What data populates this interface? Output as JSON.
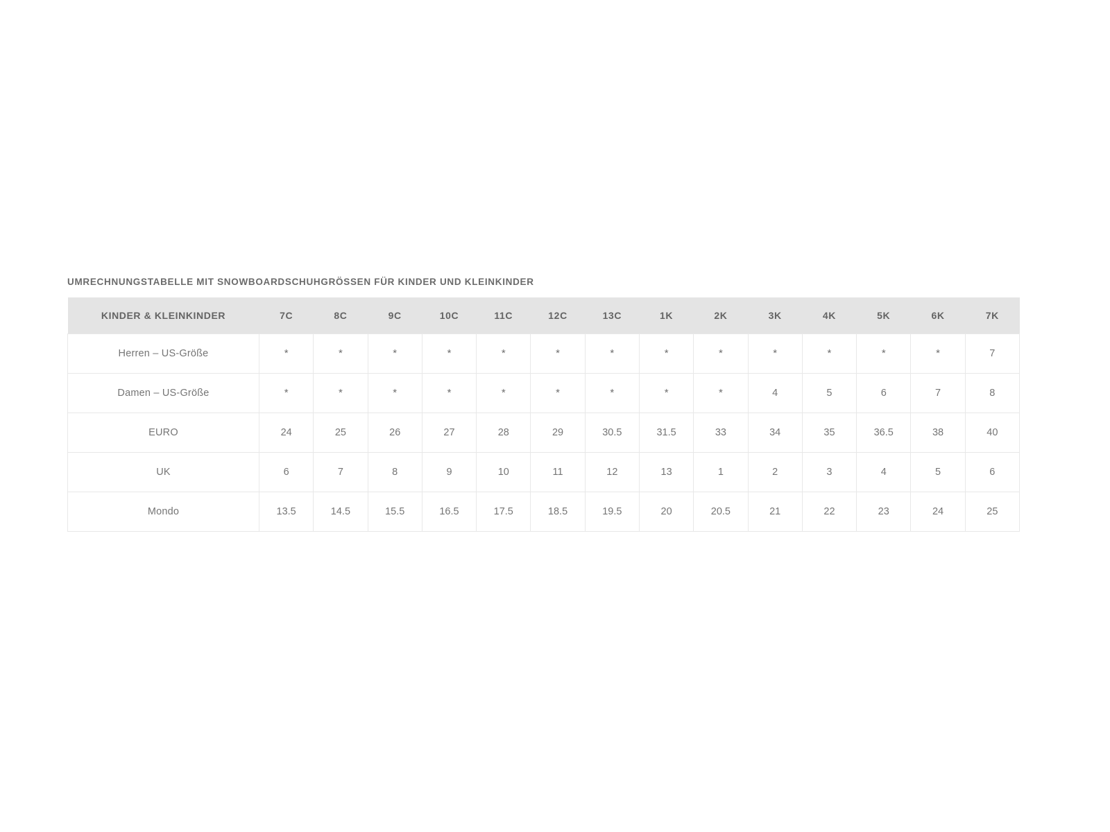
{
  "page": {
    "background": "#ffffff"
  },
  "section_title": "UMRECHNUNGSTABELLE MIT SNOWBOARDSCHUHGRÖSSEN FÜR KINDER UND KLEINKINDER",
  "table": {
    "header": [
      "KINDER & KLEINKINDER",
      "7C",
      "8C",
      "9C",
      "10C",
      "11C",
      "12C",
      "13C",
      "1K",
      "2K",
      "3K",
      "4K",
      "5K",
      "6K",
      "7K"
    ],
    "rows": [
      {
        "label": "Herren – US-Größe",
        "values": [
          "*",
          "*",
          "*",
          "*",
          "*",
          "*",
          "*",
          "*",
          "*",
          "*",
          "*",
          "*",
          "*",
          "7"
        ]
      },
      {
        "label": "Damen – US-Größe",
        "values": [
          "*",
          "*",
          "*",
          "*",
          "*",
          "*",
          "*",
          "*",
          "*",
          "4",
          "5",
          "6",
          "7",
          "8"
        ]
      },
      {
        "label": "EURO",
        "values": [
          "24",
          "25",
          "26",
          "27",
          "28",
          "29",
          "30.5",
          "31.5",
          "33",
          "34",
          "35",
          "36.5",
          "38",
          "40"
        ]
      },
      {
        "label": "UK",
        "values": [
          "6",
          "7",
          "8",
          "9",
          "10",
          "11",
          "12",
          "13",
          "1",
          "2",
          "3",
          "4",
          "5",
          "6"
        ]
      },
      {
        "label": "Mondo",
        "values": [
          "13.5",
          "14.5",
          "15.5",
          "16.5",
          "17.5",
          "18.5",
          "19.5",
          "20",
          "20.5",
          "21",
          "22",
          "23",
          "24",
          "25"
        ]
      }
    ],
    "colors": {
      "header_background": "#e4e4e4",
      "border": "#e8e8e8",
      "header_text": "#646464",
      "cell_text": "#757575",
      "title_text": "#6b6b6b"
    }
  }
}
